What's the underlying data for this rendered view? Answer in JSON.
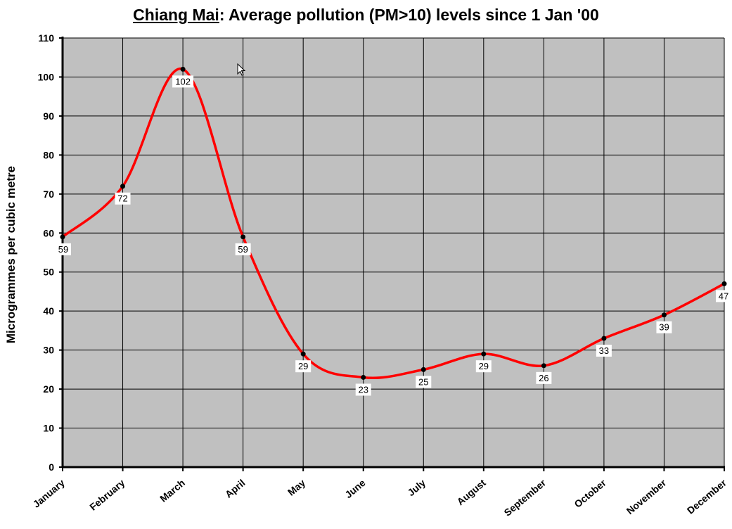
{
  "chart_data": {
    "type": "line",
    "title_city": "Chiang Mai",
    "title_rest": ": Average pollution (PM>10) levels since 1 Jan '00",
    "xlabel": "",
    "ylabel": "Microgrammes per cubic metre",
    "categories": [
      "January",
      "February",
      "March",
      "April",
      "May",
      "June",
      "July",
      "August",
      "September",
      "October",
      "November",
      "December"
    ],
    "series": [
      {
        "values": [
          59,
          72,
          102,
          59,
          29,
          23,
          25,
          29,
          26,
          33,
          39,
          47
        ],
        "color": "#ff0000"
      }
    ],
    "ylim": [
      0,
      110
    ],
    "yticks": [
      0,
      10,
      20,
      30,
      40,
      50,
      60,
      70,
      80,
      90,
      100,
      110
    ],
    "grid": true,
    "legend": "none",
    "smooth": true,
    "plot_background": "#c0c0c0",
    "data_labels": true
  }
}
